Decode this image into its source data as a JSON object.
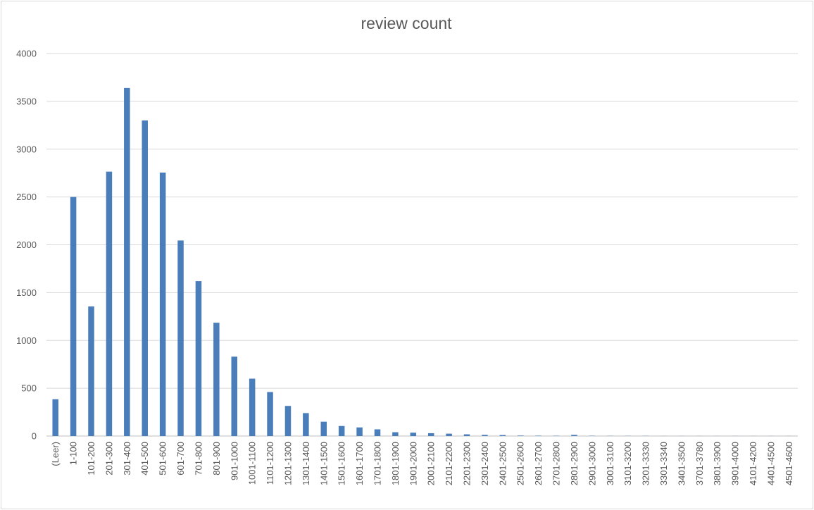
{
  "chart_data": {
    "type": "bar",
    "title": "review count",
    "xlabel": "",
    "ylabel": "",
    "ylim": [
      0,
      4000
    ],
    "yticks": [
      0,
      500,
      1000,
      1500,
      2000,
      2500,
      3000,
      3500,
      4000
    ],
    "grid": true,
    "legend": "none",
    "bar_color": "#4a7ebb",
    "categories": [
      "(Leer)",
      "1-100",
      "101-200",
      "201-300",
      "301-400",
      "401-500",
      "501-600",
      "601-700",
      "701-800",
      "801-900",
      "901-1000",
      "1001-1100",
      "1101-1200",
      "1201-1300",
      "1301-1400",
      "1401-1500",
      "1501-1600",
      "1601-1700",
      "1701-1800",
      "1801-1900",
      "1901-2000",
      "2001-2100",
      "2101-2200",
      "2201-2300",
      "2301-2400",
      "2401-2500",
      "2501-2600",
      "2601-2700",
      "2701-2800",
      "2801-2900",
      "2901-3000",
      "3001-3100",
      "3101-3200",
      "3201-3330",
      "3301-3340",
      "3401-3500",
      "3701-3780",
      "3801-3900",
      "3901-4000",
      "4101-4200",
      "4401-4500",
      "4501-4600"
    ],
    "values": [
      385,
      2500,
      1355,
      2765,
      3640,
      3300,
      2755,
      2045,
      1620,
      1185,
      830,
      600,
      460,
      315,
      240,
      150,
      105,
      90,
      70,
      40,
      35,
      30,
      25,
      18,
      12,
      10,
      5,
      4,
      3,
      12,
      3,
      2,
      2,
      2,
      1,
      1,
      1,
      1,
      1,
      1,
      1,
      1
    ]
  }
}
